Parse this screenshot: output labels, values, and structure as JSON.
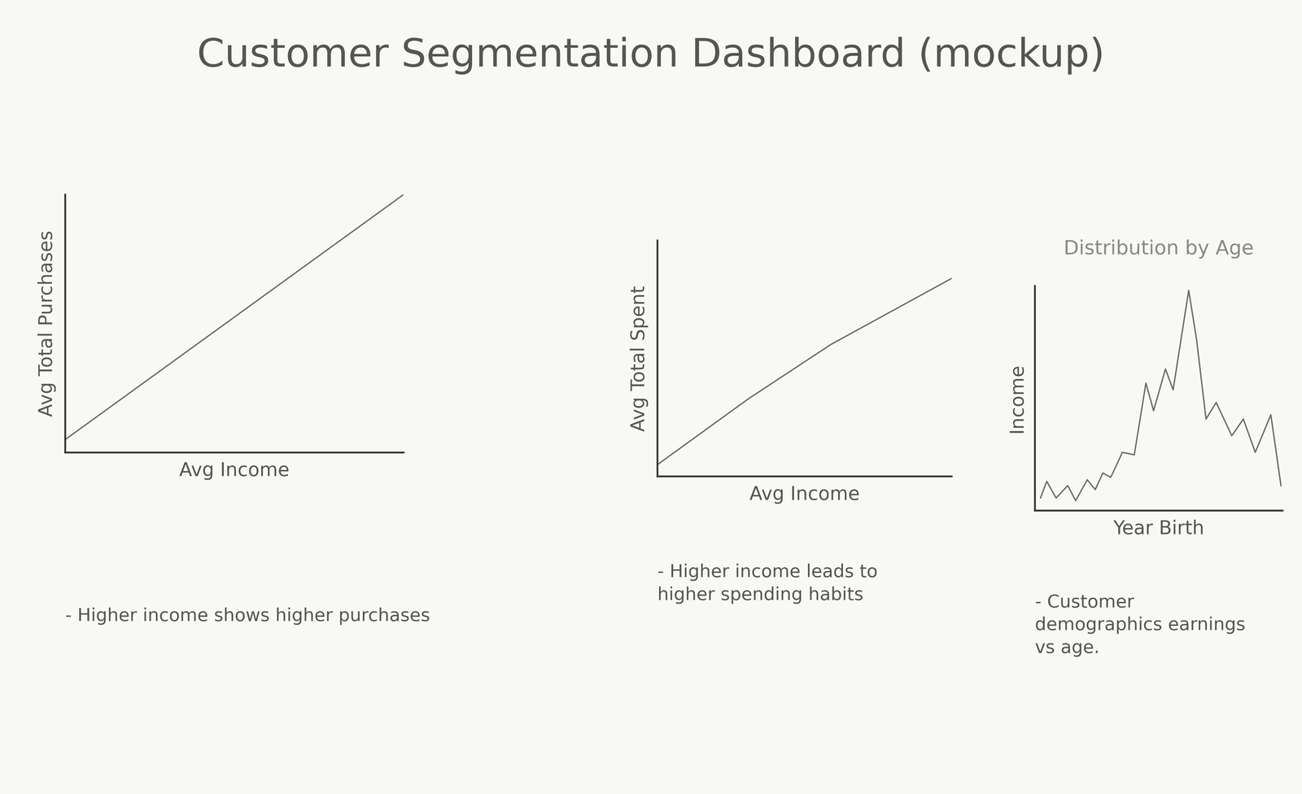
{
  "title": "Customer Segmentation Dashboard (mockup)",
  "chart_data": [
    {
      "type": "line",
      "x_label": "Avg Income",
      "y_label": "Avg Total Purchases",
      "annotation": "- Higher income shows higher purchases",
      "x": [
        0,
        10
      ],
      "values": [
        0.5,
        10
      ],
      "xlim": [
        0,
        10
      ],
      "ylim": [
        0,
        10
      ],
      "tick_labels": false,
      "color": "#6b6b6b"
    },
    {
      "type": "line",
      "x_label": "Avg Income",
      "y_label": "Avg Total Spent",
      "annotation": "- Higher income leads to higher spending habits",
      "x": [
        0,
        3.1,
        5.9,
        10
      ],
      "values": [
        0.5,
        3.3,
        5.6,
        8.4
      ],
      "xlim": [
        0,
        10
      ],
      "ylim": [
        0,
        10
      ],
      "tick_labels": false,
      "color": "#6b6b6b"
    },
    {
      "type": "line",
      "title": "Distribution by Age",
      "x_label": "Year Birth",
      "y_label": "Income",
      "annotation": "- Customer demographics earnings vs age.",
      "x": [
        2.2,
        4.7,
        8.5,
        13.2,
        16.4,
        21.1,
        24.3,
        27.4,
        30.6,
        35.3,
        40.1,
        44.8,
        47.9,
        52.7,
        55.8,
        62.1,
        65.3,
        69.1,
        73.2,
        79.5,
        84.2,
        89,
        95.3,
        99.4
      ],
      "values": [
        5.6,
        13,
        5.6,
        11.1,
        4.4,
        13.7,
        9.3,
        16.7,
        14.8,
        25.9,
        24.8,
        56.7,
        44.4,
        63,
        53.7,
        98,
        75.9,
        40.7,
        48.1,
        33.3,
        40.7,
        25.9,
        42.6,
        11.1
      ],
      "xlim": [
        0,
        100
      ],
      "ylim": [
        0,
        100
      ],
      "tick_labels": false,
      "color": "#6b6b6b"
    }
  ]
}
